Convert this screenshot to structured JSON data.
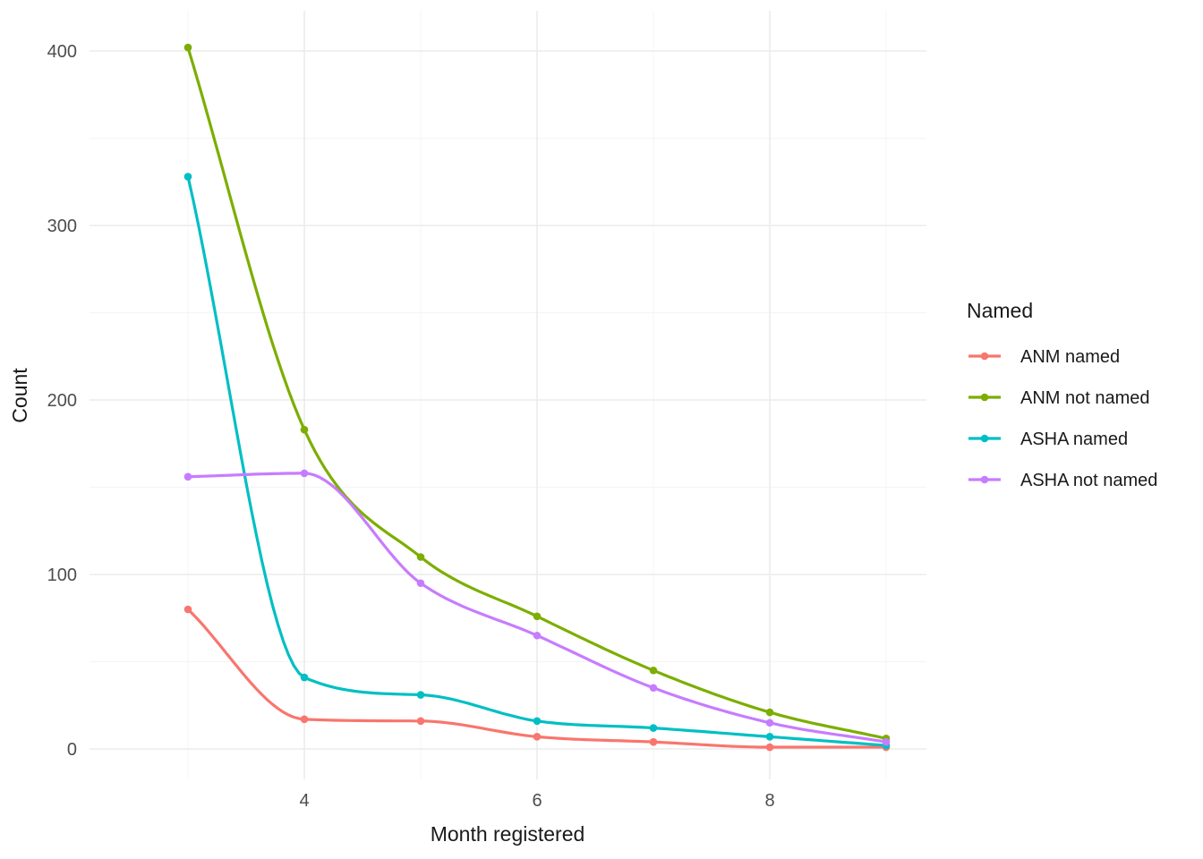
{
  "chart_data": {
    "type": "line",
    "title": "",
    "xlabel": "Month registered",
    "ylabel": "Count",
    "legend_title": "Named",
    "legend_position": "right",
    "grid": true,
    "x": [
      3,
      4,
      5,
      6,
      7,
      8,
      9
    ],
    "x_ticks": [
      4,
      6,
      8
    ],
    "x_minor_ticks": [
      3,
      5,
      7,
      9
    ],
    "y_ticks": [
      0,
      100,
      200,
      300,
      400
    ],
    "y_minor_ticks": [
      50,
      150,
      250,
      350
    ],
    "xlim": [
      2.7,
      9.35
    ],
    "ylim": [
      0,
      410
    ],
    "series": [
      {
        "name": "ANM named",
        "color": "#F8766D",
        "values": [
          80,
          17,
          16,
          7,
          4,
          1,
          1
        ]
      },
      {
        "name": "ANM not named",
        "color": "#7CAE00",
        "values": [
          402,
          183,
          110,
          76,
          45,
          21,
          6
        ]
      },
      {
        "name": "ASHA named",
        "color": "#00BFC4",
        "values": [
          328,
          41,
          31,
          16,
          12,
          7,
          2
        ]
      },
      {
        "name": "ASHA not named",
        "color": "#C77CFF",
        "values": [
          156,
          158,
          95,
          65,
          35,
          15,
          4
        ]
      }
    ],
    "style": {
      "background": "#ffffff",
      "grid_major_color": "#ebebeb",
      "grid_minor_color": "#f4f4f4",
      "tick_label_color": "#4d4d4d",
      "axis_title_color": "#1a1a1a",
      "line_width": 3.2,
      "point_radius": 4.3
    }
  }
}
